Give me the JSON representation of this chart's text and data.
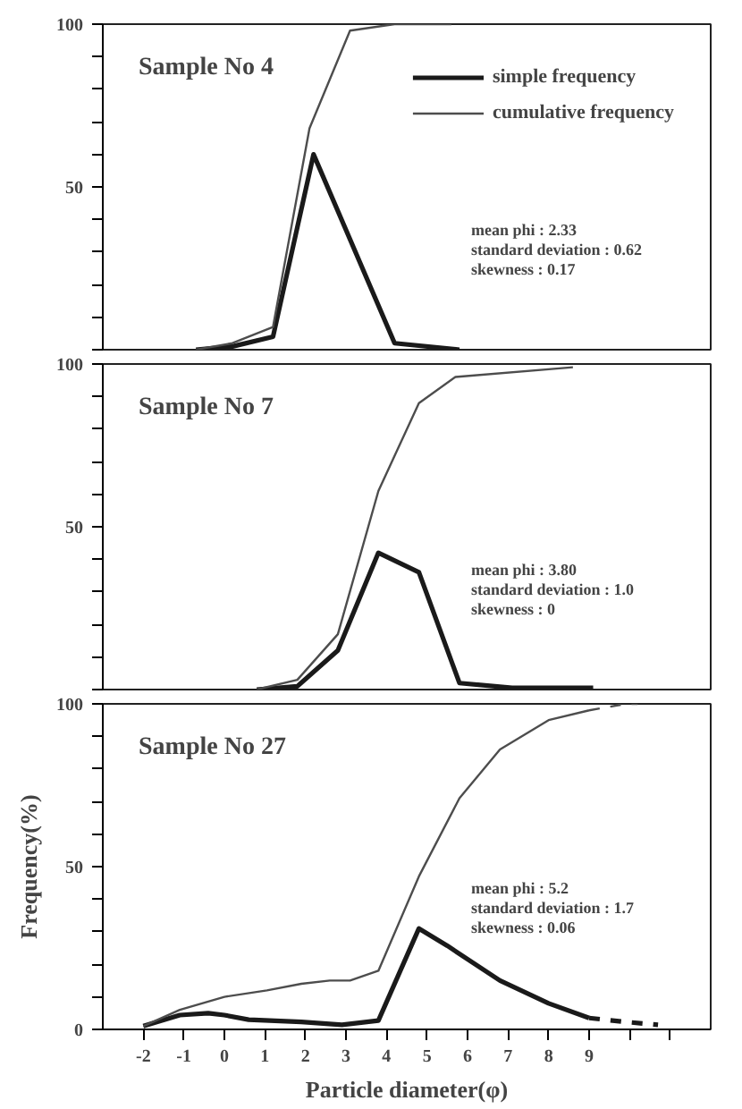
{
  "chart_data": [
    {
      "type": "line",
      "title": "Sample No  4",
      "xlim": [
        -3,
        12
      ],
      "ylim": [
        0,
        100
      ],
      "yticks": [
        {
          "value": 0,
          "label": null
        },
        {
          "value": 10,
          "label": null
        },
        {
          "value": 20,
          "label": null
        },
        {
          "value": 30,
          "label": null
        },
        {
          "value": 40,
          "label": null
        },
        50,
        {
          "value": 60,
          "label": null
        },
        {
          "value": 70,
          "label": null
        },
        {
          "value": 80,
          "label": null
        },
        {
          "value": 90,
          "label": null
        },
        100
      ],
      "tick_labels": "y",
      "legend": "top right",
      "annotations": [
        "mean phi : 2.33",
        "standard deviation : 0.62",
        "skewness : 0.17"
      ],
      "series": [
        {
          "name": "simple frequency",
          "color": "#1a1a1a",
          "x": [
            -0.7,
            0.2,
            1.2,
            2.2,
            4.2,
            5.8
          ],
          "values": [
            0,
            1,
            4,
            60,
            2,
            0
          ]
        },
        {
          "name": "cumulative frequency",
          "color": "#4d4d4d",
          "x": [
            -0.7,
            0.2,
            1.2,
            2.1,
            3.1,
            4.2,
            5.6
          ],
          "values": [
            0,
            2,
            7,
            68,
            98,
            100,
            100
          ]
        }
      ]
    },
    {
      "type": "line",
      "title": "Sample No  7",
      "xlim": [
        -3,
        12
      ],
      "ylim": [
        0,
        100
      ],
      "yticks": [
        {
          "value": 0,
          "label": null
        },
        {
          "value": 10,
          "label": null
        },
        {
          "value": 20,
          "label": null
        },
        {
          "value": 30,
          "label": null
        },
        {
          "value": 40,
          "label": null
        },
        50,
        {
          "value": 60,
          "label": null
        },
        {
          "value": 70,
          "label": null
        },
        {
          "value": 80,
          "label": null
        },
        {
          "value": 90,
          "label": null
        },
        100
      ],
      "tick_labels": "y",
      "annotations": [
        "mean phi : 3.80",
        "standard deviation : 1.0",
        "skewness : 0"
      ],
      "series": [
        {
          "color": "#1a1a1a",
          "x": [
            0.8,
            1.8,
            2.8,
            3.8,
            4.8,
            5.8,
            7.1,
            9.1
          ],
          "values": [
            0,
            1,
            12,
            42,
            36,
            2,
            0.5,
            0.5
          ]
        },
        {
          "color": "#4d4d4d",
          "x": [
            0.8,
            1.8,
            2.8,
            3.8,
            4.8,
            5.7,
            8.6
          ],
          "values": [
            0,
            3,
            17,
            61,
            88,
            96,
            99
          ]
        }
      ]
    },
    {
      "type": "line",
      "title": "Sample No 27",
      "xlabel": "Particle diameter(φ)",
      "ylabel": "Frequency(%)",
      "xlim": [
        -3,
        12
      ],
      "ylim": [
        0,
        100
      ],
      "xticks": [
        -2,
        -1,
        0,
        1,
        2,
        3,
        4,
        5,
        6,
        7,
        8,
        9,
        {
          "value": 10,
          "label": null
        },
        {
          "value": 11,
          "label": null
        }
      ],
      "yticks": [
        0,
        {
          "value": 10,
          "label": null
        },
        {
          "value": 20,
          "label": null
        },
        {
          "value": 30,
          "label": null
        },
        {
          "value": 40,
          "label": null
        },
        50,
        {
          "value": 60,
          "label": null
        },
        {
          "value": 70,
          "label": null
        },
        {
          "value": 80,
          "label": null
        },
        {
          "value": 90,
          "label": null
        },
        100
      ],
      "annotations": [
        "mean phi : 5.2",
        "standard deviation : 1.7",
        "skewness : 0.06"
      ],
      "series": [
        {
          "color": "#1a1a1a",
          "x": [
            -2,
            -1.1,
            -0.4,
            0,
            0.6,
            1.9,
            2.9,
            3.8,
            4.8,
            5.5,
            6.8,
            8,
            9
          ],
          "values": [
            1,
            4.4,
            5,
            4.4,
            3,
            2.3,
            1.4,
            2.7,
            31,
            25.7,
            15,
            8,
            3.5
          ]
        },
        {
          "color": "#4d4d4d",
          "x": [
            -2,
            -1.1,
            0,
            1.05,
            1.9,
            2.6,
            3.1,
            3.8,
            4.8,
            5.8,
            6.8,
            8,
            9
          ],
          "values": [
            1,
            6,
            10,
            12,
            14,
            15,
            15,
            18,
            47,
            71,
            86,
            95,
            98
          ]
        },
        {
          "color": "#1a1a1a",
          "line_style": "dashed",
          "x": [
            9,
            9.9,
            10.7
          ],
          "values": [
            3.5,
            2.3,
            1.4
          ]
        },
        {
          "color": "#4d4d4d",
          "line_style": "dashed",
          "x": [
            9,
            9.9,
            10.2
          ],
          "values": [
            98,
            100,
            100
          ]
        }
      ]
    }
  ]
}
